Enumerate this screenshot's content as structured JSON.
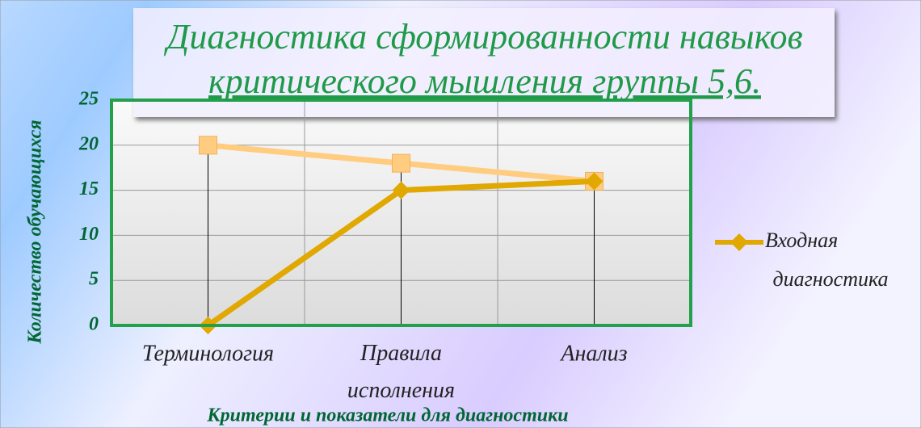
{
  "chart_data": {
    "type": "line",
    "title": [
      "Диагностика сформированности навыков",
      "критического мышления группы  5,6."
    ],
    "y_label": "Количество обучающихся",
    "x_label": "Критерии и показатели для диагностики",
    "categories": [
      "Терминология",
      "Правила исполнения",
      "Анализ"
    ],
    "series": [
      {
        "name": "Входная диагностика",
        "color": "#e0a800",
        "marker": "diamond",
        "values": [
          0,
          15,
          16
        ]
      },
      {
        "color": "#ffcc80",
        "marker": "square",
        "values": [
          20,
          18,
          16
        ]
      }
    ],
    "ylim": [
      0,
      25
    ],
    "yticks": [
      0,
      5,
      10,
      15,
      20,
      25
    ],
    "grid": true,
    "legend": "right"
  }
}
